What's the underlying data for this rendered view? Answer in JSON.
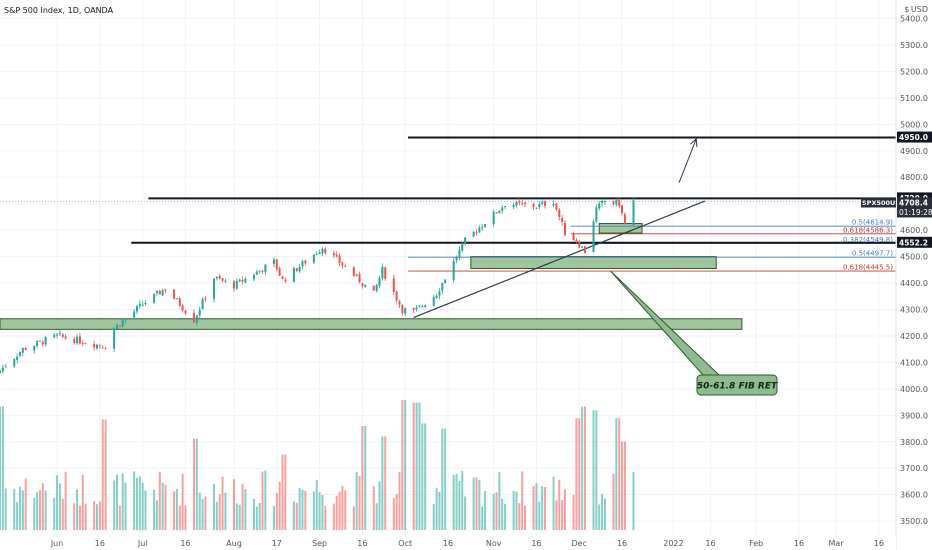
{
  "header": {
    "title": "S&P 500 Index, 1D, OANDA",
    "currency": "$ USD"
  },
  "colors": {
    "up": "#26a69a",
    "down": "#ef5350",
    "zone_fill": "#8fbc8f",
    "zone_border": "#2d5a2d",
    "level": "#131722",
    "fib_blue": "#3d7fbf",
    "fib_red": "#c0392b"
  },
  "labels": {
    "symbol_tag": "SPX500USD",
    "last_price": "4708.4",
    "countdown": "01:19:28",
    "level_top": "4950.0",
    "level_res": "4720.0",
    "level_sup": "4552.2",
    "callout": "50-61.8 FIB RET"
  },
  "chart_data": {
    "type": "candlestick",
    "title": "S&P 500 Index, 1D, OANDA",
    "y_axis": {
      "ticks": [
        3500,
        3600,
        3700,
        3800,
        3900,
        4000,
        4100,
        4200,
        4300,
        4400,
        4500,
        4600,
        4700,
        4800,
        4900,
        5000,
        5100,
        5200,
        5300,
        5400
      ],
      "tick_labels": [
        "3500.0",
        "3600.0",
        "3700.0",
        "3800.0",
        "3900.0",
        "4000.0",
        "4100.0",
        "4200.0",
        "4300.0",
        "4400.0",
        "4500.0",
        "4600.0",
        "4700.0",
        "4800.0",
        "4900.0",
        "5000.0",
        "5100.0",
        "5200.0",
        "5300.0",
        "5400.0"
      ],
      "range": [
        3440,
        5470
      ],
      "position": "right"
    },
    "x_axis": {
      "tick_labels": [
        "Jun",
        "16",
        "Jul",
        "16",
        "Aug",
        "17",
        "Sep",
        "16",
        "Oct",
        "16",
        "Nov",
        "16",
        "Dec",
        "16",
        "2022",
        "16",
        "Feb",
        "16",
        "Mar",
        "16"
      ],
      "ticks_as_dates": [
        "2021-06-01",
        "2021-06-16",
        "2021-07-01",
        "2021-07-16",
        "2021-08-02",
        "2021-08-17",
        "2021-09-01",
        "2021-09-16",
        "2021-10-01",
        "2021-10-16",
        "2021-11-01",
        "2021-11-16",
        "2021-12-01",
        "2021-12-16",
        "2022-01-03",
        "2022-01-16",
        "2022-02-01",
        "2022-02-16",
        "2022-03-01",
        "2022-03-16"
      ],
      "range": [
        "2021-05-12",
        "2022-03-22"
      ]
    },
    "price_anchors": [
      {
        "date": "2021-05-12",
        "price": 4070
      },
      {
        "date": "2021-05-20",
        "price": 4150
      },
      {
        "date": "2021-06-01",
        "price": 4200
      },
      {
        "date": "2021-06-18",
        "price": 4160
      },
      {
        "date": "2021-06-21",
        "price": 4230
      },
      {
        "date": "2021-07-01",
        "price": 4320
      },
      {
        "date": "2021-07-09",
        "price": 4380
      },
      {
        "date": "2021-07-19",
        "price": 4260
      },
      {
        "date": "2021-07-26",
        "price": 4420
      },
      {
        "date": "2021-08-02",
        "price": 4390
      },
      {
        "date": "2021-08-16",
        "price": 4480
      },
      {
        "date": "2021-08-19",
        "price": 4410
      },
      {
        "date": "2021-09-02",
        "price": 4535
      },
      {
        "date": "2021-09-10",
        "price": 4460
      },
      {
        "date": "2021-09-20",
        "price": 4360
      },
      {
        "date": "2021-09-23",
        "price": 4450
      },
      {
        "date": "2021-09-30",
        "price": 4300
      },
      {
        "date": "2021-10-04",
        "price": 4290
      },
      {
        "date": "2021-10-12",
        "price": 4360
      },
      {
        "date": "2021-10-22",
        "price": 4560
      },
      {
        "date": "2021-11-05",
        "price": 4700
      },
      {
        "date": "2021-11-16",
        "price": 4690
      },
      {
        "date": "2021-11-22",
        "price": 4710
      },
      {
        "date": "2021-11-26",
        "price": 4590
      },
      {
        "date": "2021-11-30",
        "price": 4560
      },
      {
        "date": "2021-12-03",
        "price": 4520
      },
      {
        "date": "2021-12-07",
        "price": 4680
      },
      {
        "date": "2021-12-10",
        "price": 4710
      },
      {
        "date": "2021-12-15",
        "price": 4700
      },
      {
        "date": "2021-12-17",
        "price": 4620
      },
      {
        "date": "2021-12-20",
        "price": 4708.4
      }
    ],
    "last_price": 4708.4,
    "levels": [
      {
        "value": 4950.0,
        "label": "4950.0",
        "from": "2021-10-02"
      },
      {
        "value": 4720.0,
        "label": "4720.0",
        "from": "2021-07-03"
      },
      {
        "value": 4552.2,
        "label": "4552.2",
        "from": "2021-06-27"
      }
    ],
    "zones": [
      {
        "from": "2021-05-12",
        "to": "2022-01-27",
        "low": 4225,
        "high": 4265
      },
      {
        "from": "2021-10-24",
        "to": "2022-01-18",
        "low": 4455,
        "high": 4500
      },
      {
        "from": "2021-12-08",
        "to": "2021-12-23",
        "low": 4589,
        "high": 4625
      }
    ],
    "fib_retracements": [
      {
        "label": "0.5(4614.9)",
        "value": 4614.9,
        "color": "blue",
        "from": "2021-11-28"
      },
      {
        "label": "0.618(4586.3)",
        "value": 4586.3,
        "color": "red",
        "from": "2021-11-28"
      },
      {
        "label": "0.382(4549.8)",
        "value": 4549.8,
        "color": "blue",
        "from": "2021-11-28"
      },
      {
        "label": "0.5(4497.7)",
        "value": 4497.7,
        "color": "blue",
        "from": "2021-10-02"
      },
      {
        "label": "0.618(4445.5)",
        "value": 4445.5,
        "color": "red",
        "from": "2021-10-02"
      }
    ],
    "trendline": {
      "from": {
        "date": "2021-10-04",
        "price": 4270
      },
      "to": {
        "date": "2022-01-14",
        "price": 4710
      }
    },
    "projection_arrow": {
      "from": {
        "date": "2022-01-05",
        "price": 4780
      },
      "to": {
        "date": "2022-01-11",
        "price": 4945
      }
    },
    "annotation": {
      "text": "50-61.8 FIB RET",
      "points_to": {
        "date": "2021-12-12",
        "price": 4445
      }
    },
    "volume": {
      "axis": "none",
      "tall_bars": [
        {
          "date": "2021-05-12",
          "rel": 0.95
        },
        {
          "date": "2021-06-18",
          "rel": 0.85
        },
        {
          "date": "2021-07-19",
          "rel": 0.7
        },
        {
          "date": "2021-08-20",
          "rel": 0.58
        },
        {
          "date": "2021-09-17",
          "rel": 0.8
        },
        {
          "date": "2021-09-24",
          "rel": 0.72
        },
        {
          "date": "2021-10-01",
          "rel": 1.0
        },
        {
          "date": "2021-10-05",
          "rel": 0.98
        },
        {
          "date": "2021-10-08",
          "rel": 0.82
        },
        {
          "date": "2021-10-15",
          "rel": 0.78
        },
        {
          "date": "2021-12-01",
          "rel": 0.86
        },
        {
          "date": "2021-12-03",
          "rel": 0.95
        },
        {
          "date": "2021-12-06",
          "rel": 0.92
        },
        {
          "date": "2021-12-15",
          "rel": 0.86
        },
        {
          "date": "2021-12-17",
          "rel": 0.68
        }
      ]
    }
  }
}
